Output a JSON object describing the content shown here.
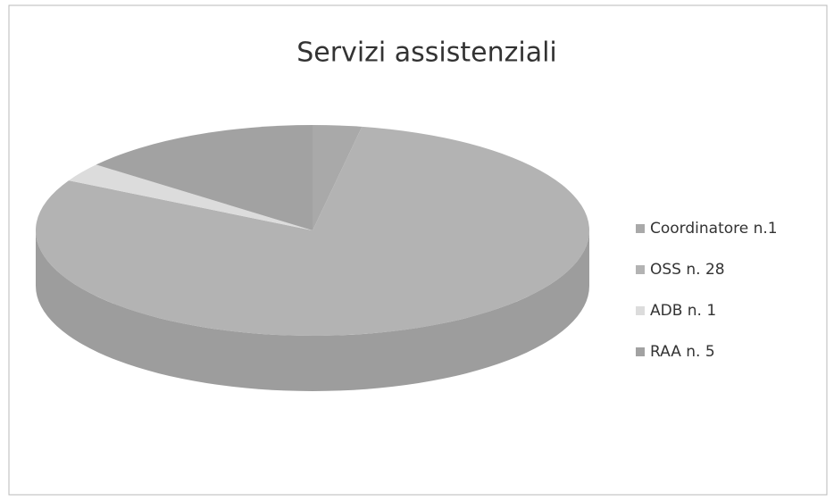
{
  "chart_data": {
    "type": "pie",
    "title": "Servizi assistenziali",
    "labels": [
      "Coordinatore n.1",
      "OSS n. 28",
      "ADB n. 1",
      "RAA n. 5"
    ],
    "values": [
      1,
      28,
      1,
      5
    ],
    "colors": [
      "#a9a9a9",
      "#b3b3b3",
      "#dcdcdc",
      "#a2a2a2"
    ],
    "legend": "right"
  }
}
